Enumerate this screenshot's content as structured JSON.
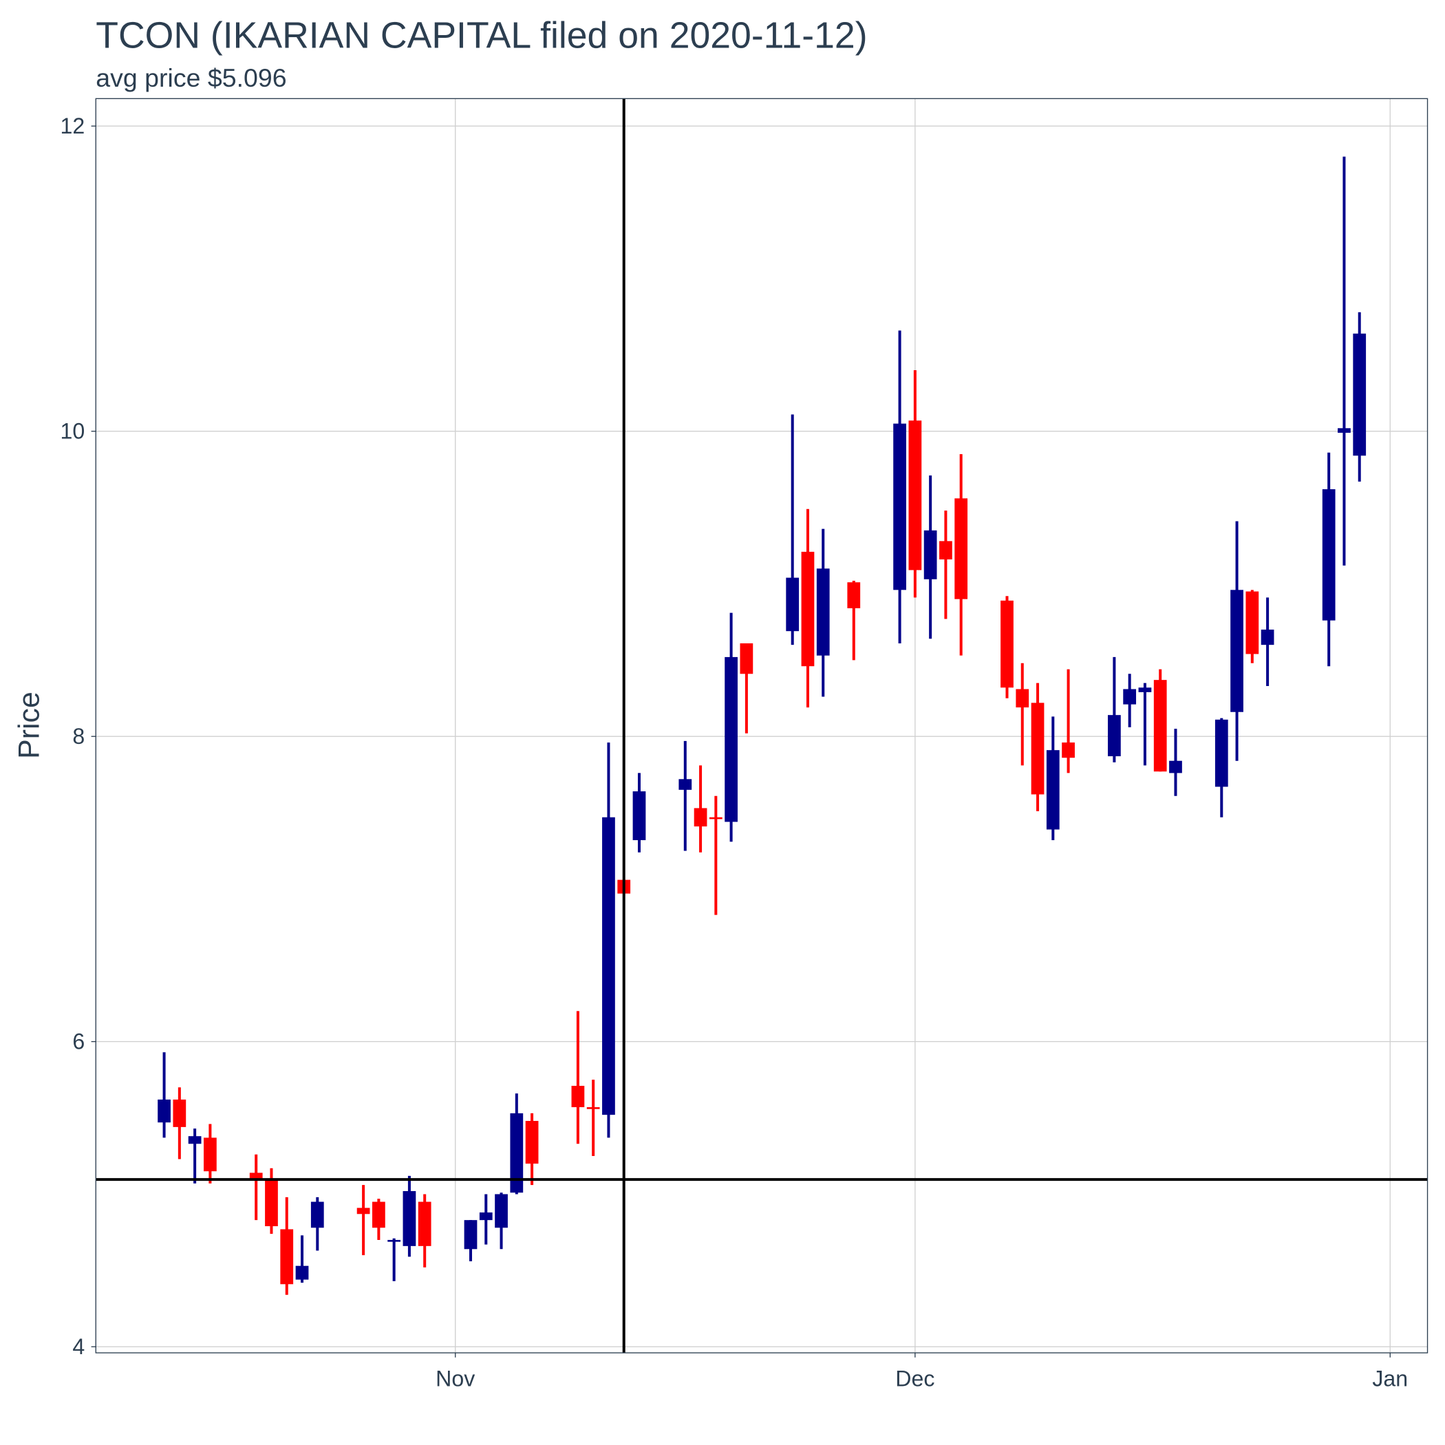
{
  "chart_data": {
    "type": "candlestick",
    "title": "TCON (IKARIAN CAPITAL filed on 2020-11-12)",
    "subtitle": "avg price $5.096",
    "y_label": "Price",
    "x": [
      "2020-10-13",
      "2020-10-14",
      "2020-10-15",
      "2020-10-16",
      "2020-10-19",
      "2020-10-20",
      "2020-10-21",
      "2020-10-22",
      "2020-10-23",
      "2020-10-26",
      "2020-10-27",
      "2020-10-28",
      "2020-10-29",
      "2020-10-30",
      "2020-11-02",
      "2020-11-03",
      "2020-11-04",
      "2020-11-05",
      "2020-11-06",
      "2020-11-09",
      "2020-11-10",
      "2020-11-11",
      "2020-11-12",
      "2020-11-13",
      "2020-11-16",
      "2020-11-17",
      "2020-11-18",
      "2020-11-19",
      "2020-11-20",
      "2020-11-23",
      "2020-11-24",
      "2020-11-25",
      "2020-11-27",
      "2020-11-30",
      "2020-12-01",
      "2020-12-02",
      "2020-12-03",
      "2020-12-04",
      "2020-12-07",
      "2020-12-08",
      "2020-12-09",
      "2020-12-10",
      "2020-12-11",
      "2020-12-14",
      "2020-12-15",
      "2020-12-16",
      "2020-12-17",
      "2020-12-18",
      "2020-12-21",
      "2020-12-22",
      "2020-12-23",
      "2020-12-24",
      "2020-12-28",
      "2020-12-29",
      "2020-12-30"
    ],
    "open": [
      5.47,
      5.62,
      5.33,
      5.37,
      5.14,
      5.09,
      4.77,
      4.44,
      4.78,
      4.91,
      4.95,
      4.69,
      4.66,
      4.95,
      4.64,
      4.83,
      4.78,
      5.01,
      5.48,
      5.71,
      5.57,
      5.52,
      7.06,
      7.32,
      7.65,
      7.53,
      7.47,
      7.44,
      8.61,
      8.69,
      9.21,
      8.53,
      9.01,
      8.96,
      10.07,
      9.03,
      9.28,
      9.56,
      8.89,
      8.31,
      8.22,
      7.39,
      7.96,
      7.87,
      8.21,
      8.29,
      8.37,
      7.76,
      7.67,
      8.16,
      8.95,
      8.6,
      8.76,
      9.99,
      9.84
    ],
    "high": [
      5.93,
      5.7,
      5.43,
      5.46,
      5.26,
      5.17,
      4.98,
      4.73,
      4.98,
      5.06,
      4.97,
      4.71,
      5.12,
      5.0,
      4.83,
      5.0,
      5.01,
      5.66,
      5.53,
      6.2,
      5.75,
      7.96,
      7.06,
      7.76,
      7.97,
      7.81,
      7.61,
      8.81,
      8.61,
      10.11,
      9.49,
      9.36,
      9.02,
      10.66,
      10.4,
      9.71,
      9.48,
      9.85,
      8.92,
      8.48,
      8.35,
      8.13,
      8.44,
      8.52,
      8.41,
      8.35,
      8.44,
      8.05,
      8.12,
      9.41,
      8.96,
      8.91,
      9.86,
      11.8,
      10.78
    ],
    "low": [
      5.37,
      5.23,
      5.07,
      5.07,
      4.83,
      4.74,
      4.34,
      4.42,
      4.63,
      4.6,
      4.7,
      4.43,
      4.59,
      4.52,
      4.56,
      4.67,
      4.64,
      5.0,
      5.06,
      5.33,
      5.25,
      5.37,
      6.97,
      7.24,
      7.25,
      7.24,
      6.83,
      7.31,
      8.02,
      8.6,
      8.19,
      8.26,
      8.5,
      8.61,
      8.91,
      8.64,
      8.77,
      8.53,
      8.25,
      7.81,
      7.51,
      7.32,
      7.76,
      7.83,
      8.06,
      7.81,
      7.77,
      7.61,
      7.47,
      7.84,
      8.48,
      8.33,
      8.46,
      9.12,
      9.67
    ],
    "close": [
      5.62,
      5.44,
      5.38,
      5.15,
      5.09,
      4.79,
      4.41,
      4.53,
      4.95,
      4.87,
      4.78,
      4.7,
      5.02,
      4.66,
      4.83,
      4.88,
      5.0,
      5.53,
      5.2,
      5.57,
      5.56,
      7.47,
      6.97,
      7.64,
      7.72,
      7.41,
      7.46,
      8.52,
      8.41,
      9.04,
      8.46,
      9.1,
      8.84,
      10.05,
      9.09,
      9.35,
      9.16,
      8.9,
      8.32,
      8.19,
      7.62,
      7.91,
      7.86,
      8.14,
      8.31,
      8.32,
      7.77,
      7.84,
      8.11,
      8.96,
      8.54,
      8.7,
      9.62,
      10.02,
      10.64
    ],
    "up_color": "#00008b",
    "down_color": "#ff0000",
    "hline": 5.096,
    "vline": "2020-11-12",
    "xlim": [
      "2020-10-08T13:00",
      "2021-01-03T10:30"
    ],
    "xticks": [
      {
        "value": "2020-11-01",
        "label": "Nov"
      },
      {
        "value": "2020-12-01",
        "label": "Dec"
      },
      {
        "value": "2021-01-01",
        "label": "Jan"
      }
    ],
    "ylim": [
      3.96,
      12.18
    ],
    "yticks": [
      4,
      6,
      8,
      10,
      12
    ],
    "grid": true
  }
}
